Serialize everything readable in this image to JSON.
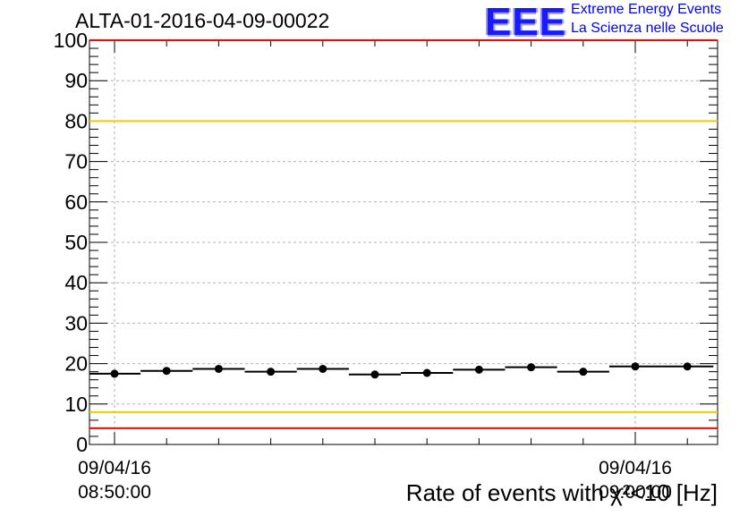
{
  "title": "ALTA-01-2016-04-09-00022",
  "logo": {
    "mark": "EEE",
    "line1": "Extreme Energy Events",
    "line2": "La Scienza nelle Scuole"
  },
  "colors": {
    "red_line": "#ff0000",
    "yellow_line": "#f5c800",
    "grid": "#b0b0b0",
    "marker": "#000000",
    "logo_blue": "#1a1aff"
  },
  "chart_data": {
    "type": "scatter",
    "title": "ALTA-01-2016-04-09-00022",
    "xlabel": "Rate of events with χ²<10 [Hz]",
    "ylabel": "",
    "ylim": [
      0,
      100
    ],
    "yticks": [
      0,
      10,
      20,
      30,
      40,
      50,
      60,
      70,
      80,
      90,
      100
    ],
    "xtick_labels": [
      {
        "date": "09/04/16",
        "time": "08:50:00"
      },
      {
        "date": "09/04/16",
        "time": "09:00:00"
      }
    ],
    "grid": true,
    "points_time_minutes": [
      0,
      1,
      2,
      3,
      4,
      5,
      6,
      7,
      8,
      9,
      10,
      11
    ],
    "values": [
      17.5,
      18.2,
      18.7,
      18.0,
      18.7,
      17.3,
      17.7,
      18.5,
      19.1,
      18.0,
      19.3,
      19.3
    ],
    "reference_lines": [
      {
        "value": 100,
        "color": "#ff0000"
      },
      {
        "value": 80,
        "color": "#f5c800"
      },
      {
        "value": 8,
        "color": "#f5c800"
      },
      {
        "value": 4,
        "color": "#ff0000"
      }
    ]
  }
}
